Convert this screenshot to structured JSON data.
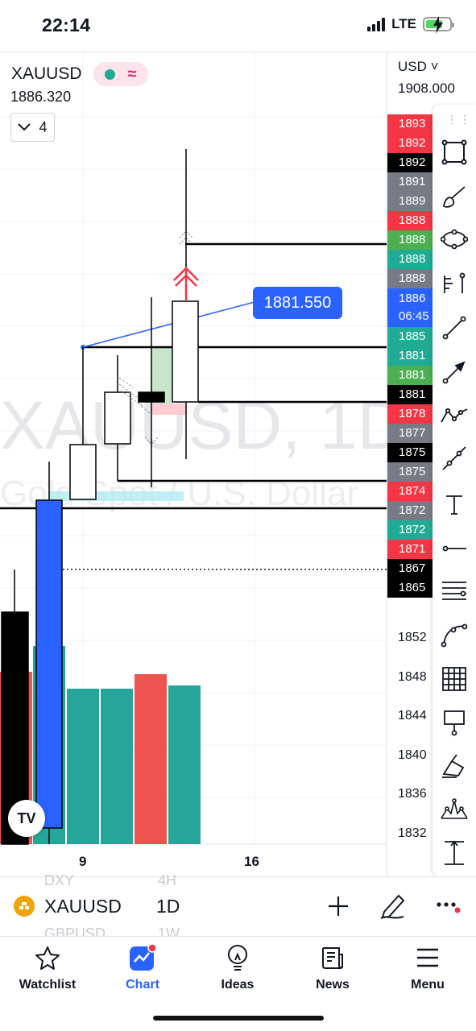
{
  "status_bar": {
    "time": "22:14",
    "network": "LTE"
  },
  "chart_header": {
    "symbol": "XAUUSD",
    "last_price": "1886.320",
    "collapse_count": "4",
    "currency": "USD",
    "top_scale_price": "1908.000"
  },
  "watermark": {
    "title": "XAUUSD, 1D",
    "subtitle": "Gold Spot / U.S. Dollar"
  },
  "price_tooltip": "1881.550",
  "price_labels": [
    {
      "text": "1893",
      "color": "#f23645"
    },
    {
      "text": "1892",
      "color": "#f23645"
    },
    {
      "text": "1892",
      "color": "#000000"
    },
    {
      "text": "1891",
      "color": "#787b86"
    },
    {
      "text": "1889",
      "color": "#787b86"
    },
    {
      "text": "1888",
      "color": "#f23645"
    },
    {
      "text": "1888",
      "color": "#4caf50"
    },
    {
      "text": "1888",
      "color": "#22ab94"
    },
    {
      "text": "1888",
      "color": "#787b86"
    },
    {
      "text": "1886",
      "time": "06:45",
      "color": "#2962ff"
    },
    {
      "text": "1885",
      "color": "#22ab94"
    },
    {
      "text": "1881",
      "color": "#22ab94"
    },
    {
      "text": "1881",
      "color": "#4caf50"
    },
    {
      "text": "1881",
      "color": "#000000"
    },
    {
      "text": "1878",
      "color": "#f23645"
    },
    {
      "text": "1877",
      "color": "#787b86"
    },
    {
      "text": "1875",
      "color": "#000000"
    },
    {
      "text": "1875",
      "color": "#787b86"
    },
    {
      "text": "1874",
      "color": "#f23645"
    },
    {
      "text": "1872",
      "color": "#787b86"
    },
    {
      "text": "1872",
      "color": "#22ab94"
    },
    {
      "text": "1871",
      "color": "#f23645"
    },
    {
      "text": "1867",
      "color": "#000000"
    },
    {
      "text": "1865",
      "color": "#000000"
    }
  ],
  "axis_prices": [
    "1852",
    "1848",
    "1844",
    "1840",
    "1836",
    "1832"
  ],
  "time_axis": [
    "9",
    "16"
  ],
  "drawing_tools": [
    "rectangle-tool-icon",
    "brush-tool-icon",
    "ellipse-tool-icon",
    "pitchfork-tool-icon",
    "trend-line-tool-icon",
    "arrow-line-tool-icon",
    "path-tool-icon",
    "extended-line-tool-icon",
    "text-tool-icon",
    "horizontal-ray-tool-icon",
    "parallel-channel-tool-icon",
    "curve-tool-icon",
    "gann-grid-tool-icon",
    "price-note-tool-icon",
    "highlighter-tool-icon",
    "pattern-tool-icon",
    "measure-tool-icon"
  ],
  "symbol_bar": {
    "symbol": "XAUUSD",
    "interval": "1D",
    "ghost_symbol_above": "DXY",
    "ghost_interval_above": "4H",
    "ghost_symbol_below": "GBPUSD",
    "ghost_interval_below": "1W"
  },
  "tabs": [
    {
      "label": "Watchlist",
      "active": false
    },
    {
      "label": "Chart",
      "active": true
    },
    {
      "label": "Ideas",
      "active": false
    },
    {
      "label": "News",
      "active": false
    },
    {
      "label": "Menu",
      "active": false
    }
  ],
  "colors": {
    "accent": "#2962ff",
    "up": "#22ab94",
    "down": "#f23645"
  }
}
